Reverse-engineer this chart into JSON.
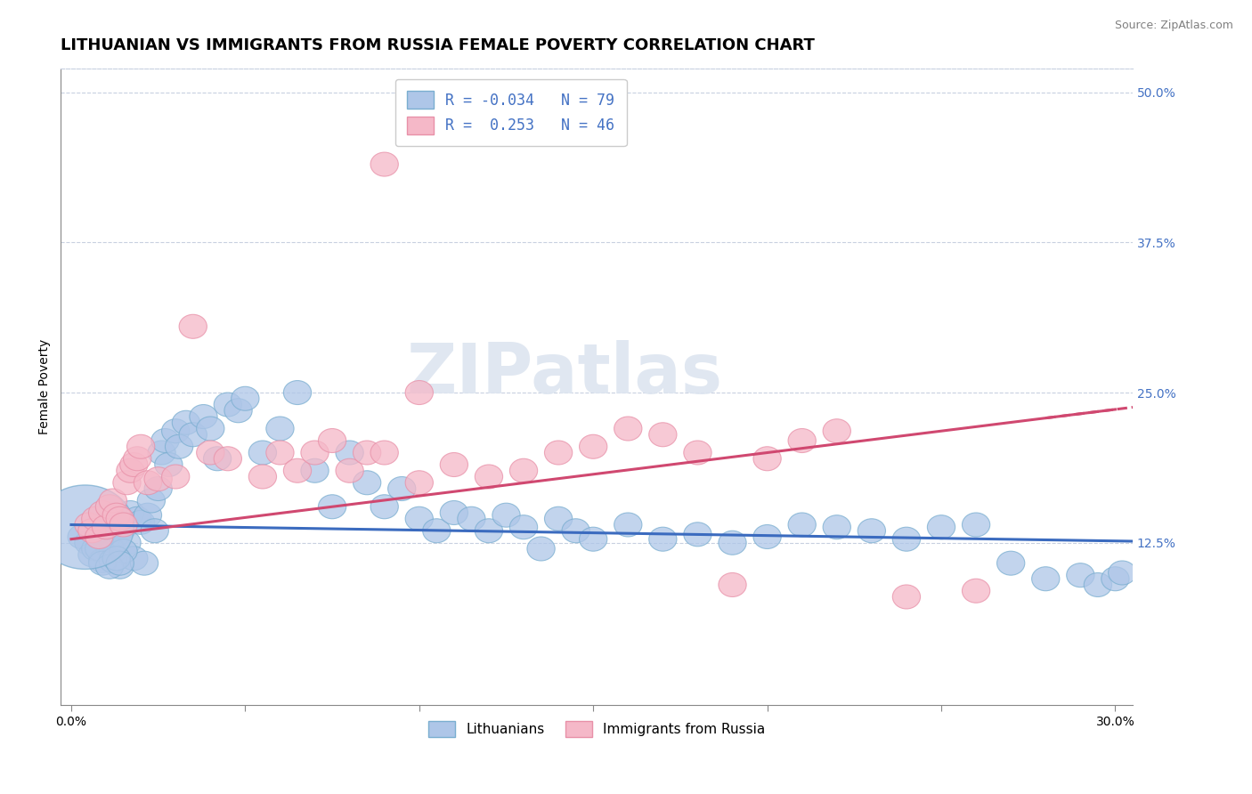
{
  "title": "LITHUANIAN VS IMMIGRANTS FROM RUSSIA FEMALE POVERTY CORRELATION CHART",
  "source": "Source: ZipAtlas.com",
  "ylabel": "Female Poverty",
  "xlim": [
    -0.003,
    0.305
  ],
  "ylim": [
    -0.01,
    0.52
  ],
  "yticks": [
    0.125,
    0.25,
    0.375,
    0.5
  ],
  "ytick_labels": [
    "12.5%",
    "25.0%",
    "37.5%",
    "50.0%"
  ],
  "xticks": [
    0.0,
    0.05,
    0.1,
    0.15,
    0.2,
    0.25,
    0.3
  ],
  "xtick_labels": [
    "0.0%",
    "",
    "",
    "",
    "",
    "",
    "30.0%"
  ],
  "blue_color": "#aec6e8",
  "pink_color": "#f5b8c8",
  "blue_edge_color": "#7aaed0",
  "pink_edge_color": "#e890a8",
  "blue_line_color": "#3b6bbf",
  "pink_line_color": "#d04870",
  "legend_blue_label": "R = -0.034   N = 79",
  "legend_pink_label": "R =  0.253   N = 46",
  "bottom_legend_blue": "Lithuanians",
  "bottom_legend_pink": "Immigrants from Russia",
  "watermark": "ZIPatlas",
  "title_fontsize": 13,
  "axis_label_fontsize": 10,
  "tick_fontsize": 10,
  "blue_intercept": 0.14,
  "blue_slope": -0.045,
  "pink_intercept": 0.128,
  "pink_slope": 0.36,
  "blue_scatter_x": [
    0.003,
    0.005,
    0.006,
    0.007,
    0.008,
    0.009,
    0.01,
    0.011,
    0.012,
    0.013,
    0.014,
    0.015,
    0.016,
    0.017,
    0.018,
    0.019,
    0.02,
    0.021,
    0.022,
    0.023,
    0.024,
    0.025,
    0.026,
    0.027,
    0.028,
    0.03,
    0.031,
    0.033,
    0.035,
    0.038,
    0.04,
    0.042,
    0.045,
    0.048,
    0.05,
    0.055,
    0.06,
    0.065,
    0.07,
    0.075,
    0.08,
    0.085,
    0.09,
    0.095,
    0.1,
    0.105,
    0.11,
    0.115,
    0.12,
    0.125,
    0.13,
    0.135,
    0.14,
    0.145,
    0.15,
    0.16,
    0.17,
    0.18,
    0.19,
    0.2,
    0.21,
    0.22,
    0.23,
    0.24,
    0.25,
    0.26,
    0.27,
    0.28,
    0.29,
    0.295,
    0.3,
    0.302,
    0.008,
    0.009,
    0.012,
    0.015,
    0.011,
    0.013,
    0.014
  ],
  "blue_scatter_y": [
    0.13,
    0.125,
    0.115,
    0.12,
    0.135,
    0.11,
    0.128,
    0.122,
    0.118,
    0.132,
    0.105,
    0.138,
    0.125,
    0.15,
    0.112,
    0.145,
    0.142,
    0.108,
    0.148,
    0.16,
    0.135,
    0.17,
    0.2,
    0.21,
    0.19,
    0.218,
    0.205,
    0.225,
    0.215,
    0.23,
    0.22,
    0.195,
    0.24,
    0.235,
    0.245,
    0.2,
    0.22,
    0.25,
    0.185,
    0.155,
    0.2,
    0.175,
    0.155,
    0.17,
    0.145,
    0.135,
    0.15,
    0.145,
    0.135,
    0.148,
    0.138,
    0.12,
    0.145,
    0.135,
    0.128,
    0.14,
    0.128,
    0.132,
    0.125,
    0.13,
    0.14,
    0.138,
    0.135,
    0.128,
    0.138,
    0.14,
    0.108,
    0.095,
    0.098,
    0.09,
    0.095,
    0.1,
    0.12,
    0.108,
    0.11,
    0.118,
    0.105,
    0.112,
    0.108
  ],
  "blue_large_x": [
    0.005
  ],
  "blue_large_y": [
    0.138
  ],
  "pink_scatter_x": [
    0.005,
    0.006,
    0.007,
    0.008,
    0.009,
    0.01,
    0.011,
    0.012,
    0.013,
    0.014,
    0.015,
    0.016,
    0.017,
    0.018,
    0.019,
    0.02,
    0.022,
    0.025,
    0.03,
    0.035,
    0.04,
    0.045,
    0.055,
    0.06,
    0.065,
    0.07,
    0.075,
    0.08,
    0.085,
    0.09,
    0.1,
    0.11,
    0.12,
    0.13,
    0.14,
    0.15,
    0.16,
    0.17,
    0.18,
    0.19,
    0.2,
    0.21,
    0.22,
    0.24,
    0.26,
    0.1
  ],
  "pink_scatter_y": [
    0.14,
    0.135,
    0.145,
    0.13,
    0.15,
    0.138,
    0.155,
    0.16,
    0.148,
    0.145,
    0.14,
    0.175,
    0.185,
    0.19,
    0.195,
    0.205,
    0.175,
    0.178,
    0.18,
    0.305,
    0.2,
    0.195,
    0.18,
    0.2,
    0.185,
    0.2,
    0.21,
    0.185,
    0.2,
    0.2,
    0.175,
    0.19,
    0.18,
    0.185,
    0.2,
    0.205,
    0.22,
    0.215,
    0.2,
    0.09,
    0.195,
    0.21,
    0.218,
    0.08,
    0.085,
    0.25
  ]
}
